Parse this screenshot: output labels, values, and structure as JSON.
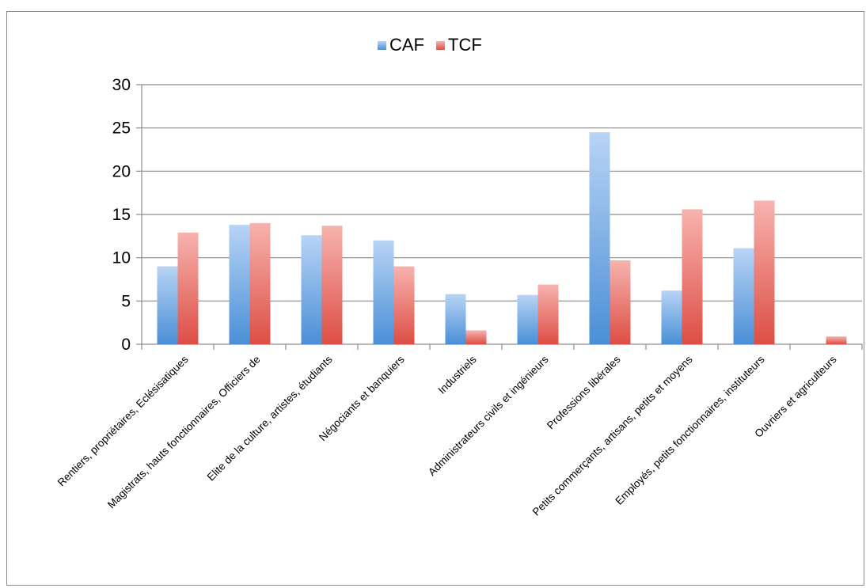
{
  "chart_data": {
    "type": "bar",
    "title": "",
    "xlabel": "",
    "ylabel": "",
    "ylim": [
      0,
      30
    ],
    "yticks": [
      0,
      5,
      10,
      15,
      20,
      25,
      30
    ],
    "grid": true,
    "legend_position": "top-center",
    "categories": [
      "Rentiers, propriétaires, Eclésisatiques",
      "Magistrats, hauts fonctionnaires, Officiers de",
      "Elite de la culture, artistes, étudiants",
      "Négociants et banquiers",
      "Industriels",
      "Administrateurs civils et ingénieurs",
      "Professions libérales",
      "Petits commerçants, artisans, petits et moyens",
      "Employés, petits fonctionnaires, instituteurs",
      "Ouvriers et agriculteurs"
    ],
    "series": [
      {
        "name": "CAF",
        "color": "#5b9bd5",
        "values": [
          9.0,
          13.8,
          12.6,
          12.0,
          5.8,
          5.7,
          24.5,
          6.2,
          11.1,
          0
        ]
      },
      {
        "name": "TCF",
        "color": "#e0534a",
        "values": [
          12.9,
          14.0,
          13.7,
          9.0,
          1.6,
          6.9,
          9.7,
          15.6,
          16.6,
          0.9
        ]
      }
    ]
  }
}
